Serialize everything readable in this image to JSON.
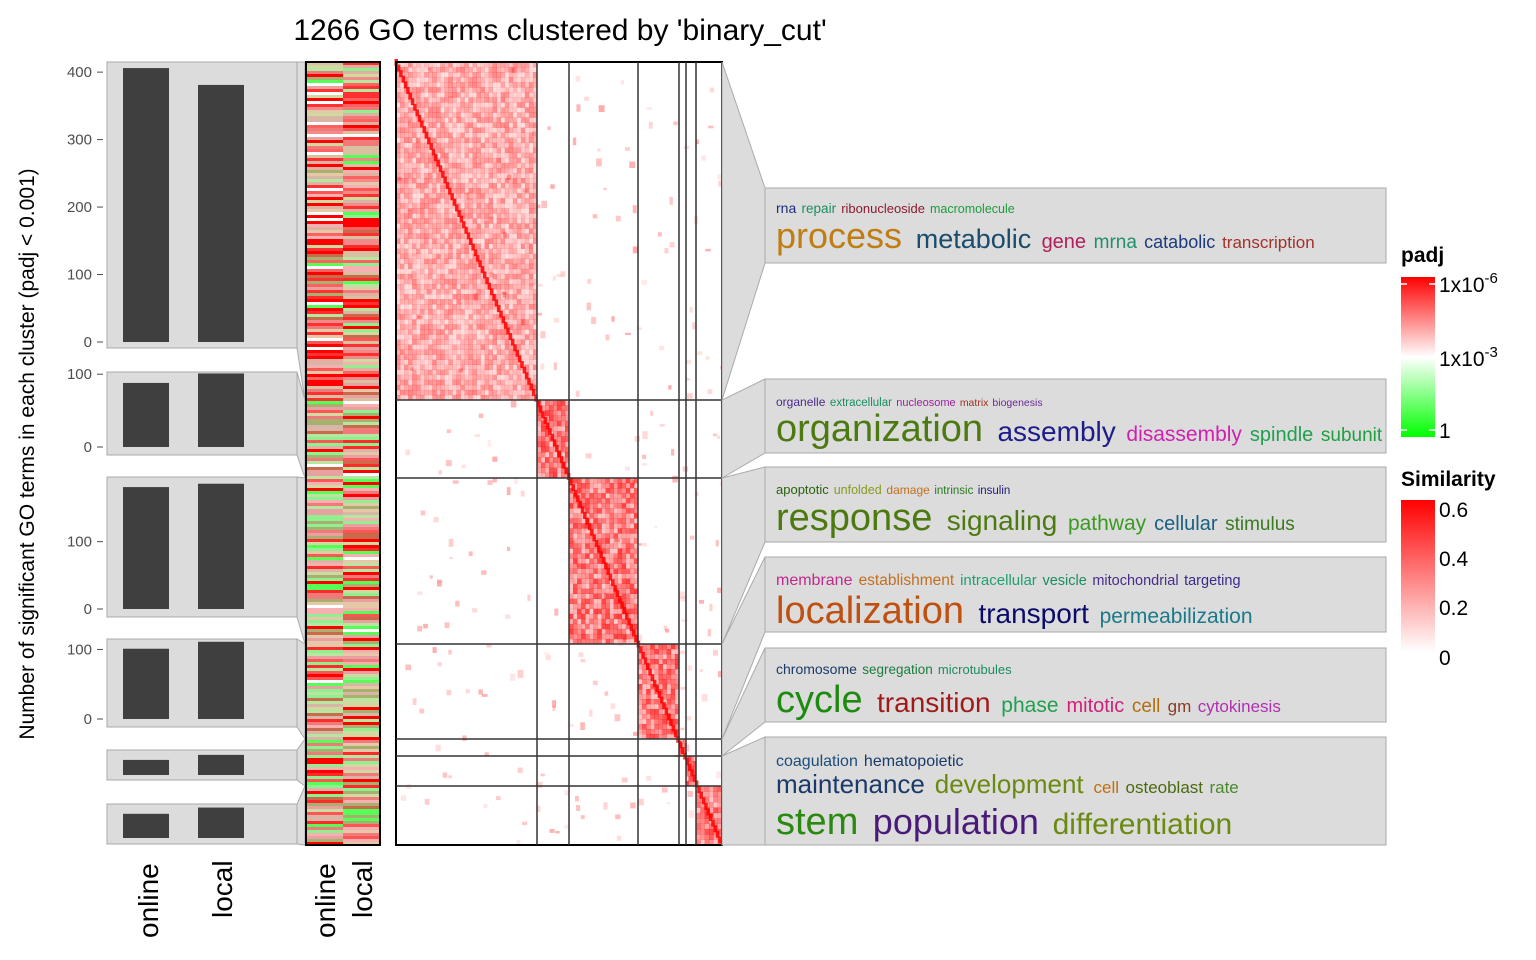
{
  "title": "1266 GO terms clustered by 'binary_cut'",
  "colors": {
    "bar": "#3f3f3f",
    "panel": "#dcdcdc",
    "panel_border": "#aaaaaa",
    "sim_high": "#ff0000",
    "padj_high": "#ff0000",
    "padj_low": "#00ff00"
  },
  "left_barplot": {
    "ylabel": "Number of significant GO terms in each cluster (padj < 0.001)",
    "categories": [
      "online",
      "local"
    ]
  },
  "heatmap_columns": [
    "online",
    "local"
  ],
  "legends": {
    "padj": {
      "title": "padj",
      "labels": [
        "1x10",
        "-6",
        "1x10",
        "-3",
        "1"
      ]
    },
    "similarity": {
      "title": "Similarity",
      "labels": [
        "0.6",
        "0.4",
        "0.2",
        "0"
      ]
    }
  },
  "chart_data": {
    "type": "bar",
    "title": "1266 GO terms clustered by 'binary_cut'",
    "ylabel": "Number of significant GO terms in each cluster (padj < 0.001)",
    "categories": [
      "online",
      "local"
    ],
    "clusters": [
      {
        "online": 406,
        "local": 381,
        "yticks": [
          0,
          100,
          200,
          300,
          400
        ],
        "ylim": [
          0,
          415
        ],
        "keywords_row1": [
          [
            "rna",
            "#1a2f7a"
          ],
          [
            "repair",
            "#1b8e5f"
          ],
          [
            "ribonucleoside",
            "#8b1a2e"
          ],
          [
            "macromolecule",
            "#1b9e3a"
          ]
        ],
        "keywords_row2": [
          [
            "process",
            "#c07d13"
          ],
          [
            "metabolic",
            "#1a4d6b"
          ],
          [
            "gene",
            "#b0205a"
          ],
          [
            "mrna",
            "#21906a"
          ],
          [
            "catabolic",
            "#1c3a7a"
          ],
          [
            "transcription",
            "#a0322b"
          ]
        ],
        "keywords_row3": []
      },
      {
        "online": 88,
        "local": 101,
        "yticks": [
          0,
          100
        ],
        "ylim": [
          0,
          103
        ],
        "keywords_row1": [
          [
            "organelle",
            "#4a2a8a"
          ],
          [
            "extracellular",
            "#1b8e5f"
          ],
          [
            "nucleosome",
            "#a020a0"
          ],
          [
            "matrix",
            "#a03020"
          ],
          [
            "biogenesis",
            "#6a2a9a"
          ]
        ],
        "keywords_row2": [
          [
            "organization",
            "#4d7a10"
          ],
          [
            "assembly",
            "#1c1c8a"
          ],
          [
            "disassembly",
            "#d020b0"
          ],
          [
            "spindle",
            "#20a050"
          ],
          [
            "subunit",
            "#20a040"
          ]
        ],
        "keywords_row3": []
      },
      {
        "online": 181,
        "local": 186,
        "yticks": [
          0,
          100
        ],
        "ylim": [
          0,
          196
        ],
        "keywords_row1": [
          [
            "apoptotic",
            "#2a6010"
          ],
          [
            "unfolded",
            "#8a9a20"
          ],
          [
            "damage",
            "#c07020"
          ],
          [
            "intrinsic",
            "#2a7a20"
          ],
          [
            "insulin",
            "#1c1c7a"
          ]
        ],
        "keywords_row2": [
          [
            "response",
            "#4d7a10"
          ],
          [
            "signaling",
            "#4d7a10"
          ],
          [
            "pathway",
            "#3a9a20"
          ],
          [
            "cellular",
            "#1a6080"
          ],
          [
            "stimulus",
            "#3a7a20"
          ]
        ],
        "keywords_row3": []
      },
      {
        "online": 101,
        "local": 111,
        "yticks": [
          0,
          100
        ],
        "ylim": [
          0,
          115
        ],
        "keywords_row1": [
          [
            "membrane",
            "#c02a8a"
          ],
          [
            "establishment",
            "#c07020"
          ],
          [
            "intracellular",
            "#20a070"
          ],
          [
            "vesicle",
            "#1b8e5f"
          ],
          [
            "mitochondrial",
            "#4a2a8a"
          ],
          [
            "targeting",
            "#3a2a8a"
          ]
        ],
        "keywords_row2": [
          [
            "localization",
            "#c05010"
          ],
          [
            "transport",
            "#0a0a6a"
          ],
          [
            "permeabilization",
            "#1a7a8a"
          ]
        ],
        "keywords_row3": []
      },
      {
        "online": 21,
        "local": 28,
        "yticks": [],
        "ylim": [
          0,
          32
        ],
        "keywords_row1": [
          [
            "chromosome",
            "#1a3a6a"
          ],
          [
            "segregation",
            "#1b7e3f"
          ],
          [
            "microtubules",
            "#1b8e5f"
          ]
        ],
        "keywords_row2": [
          [
            "cycle",
            "#1f8a10"
          ],
          [
            "transition",
            "#a01a1a"
          ],
          [
            "phase",
            "#20a050"
          ],
          [
            "mitotic",
            "#d0207a"
          ],
          [
            "cell",
            "#b07010"
          ],
          [
            "gm",
            "#8a3a2a"
          ],
          [
            "cytokinesis",
            "#b030b0"
          ]
        ],
        "keywords_row3": []
      },
      {
        "online": 31,
        "local": 39,
        "yticks": [],
        "ylim": [
          0,
          41
        ],
        "keywords_row1": [
          [
            "coagulation",
            "#1a4d7a"
          ],
          [
            "hematopoietic",
            "#1a3a6a"
          ]
        ],
        "keywords_row2": [
          [
            "maintenance",
            "#1a3a6a"
          ],
          [
            "development",
            "#6a8a10"
          ],
          [
            "cell",
            "#c07010"
          ],
          [
            "osteoblast",
            "#4a6a10"
          ],
          [
            "rate",
            "#4a8a30"
          ]
        ],
        "keywords_row3": [
          [
            "stem",
            "#2a8a10"
          ],
          [
            "population",
            "#4a1a7a"
          ],
          [
            "differentiation",
            "#6a8a10"
          ]
        ]
      }
    ]
  }
}
